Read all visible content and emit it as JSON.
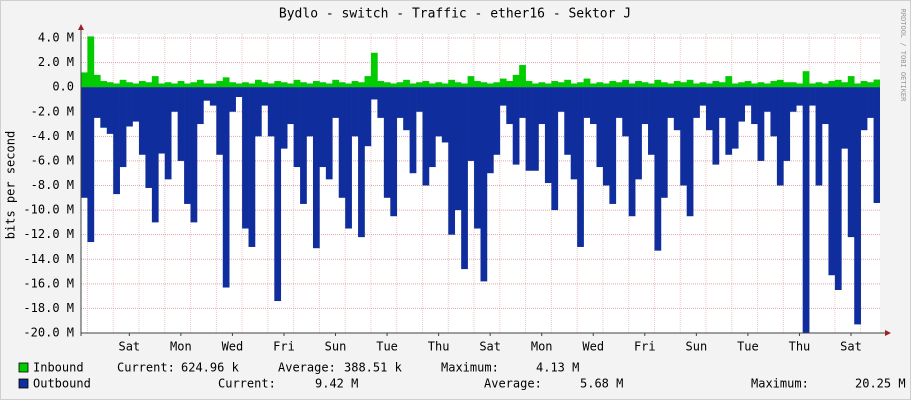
{
  "chart_data": {
    "type": "area",
    "title": "Bydlo - switch - Traffic - ether16 - Sektor J",
    "ylabel": "bits per second",
    "side_text": "RRDTOOL / TOBI OETIKER",
    "categories": [
      null,
      null,
      null,
      null,
      null,
      null,
      null,
      "Sat",
      null,
      null,
      null,
      null,
      null,
      null,
      null,
      "Mon",
      null,
      null,
      null,
      null,
      null,
      null,
      null,
      "Wed",
      null,
      null,
      null,
      null,
      null,
      null,
      null,
      "Fri",
      null,
      null,
      null,
      null,
      null,
      null,
      null,
      "Sun",
      null,
      null,
      null,
      null,
      null,
      null,
      null,
      "Tue",
      null,
      null,
      null,
      null,
      null,
      null,
      null,
      "Thu",
      null,
      null,
      null,
      null,
      null,
      null,
      null,
      "Sat",
      null,
      null,
      null,
      null,
      null,
      null,
      null,
      "Mon",
      null,
      null,
      null,
      null,
      null,
      null,
      null,
      "Wed",
      null,
      null,
      null,
      null,
      null,
      null,
      null,
      "Fri",
      null,
      null,
      null,
      null,
      null,
      null,
      null,
      "Sun",
      null,
      null,
      null,
      null,
      null,
      null,
      null,
      "Tue",
      null,
      null,
      null,
      null,
      null,
      null,
      null,
      "Thu",
      null,
      null,
      null,
      null,
      null,
      null,
      null,
      "Sat",
      null,
      null,
      null,
      null
    ],
    "ylim": [
      -20000000.0,
      4000000.0
    ],
    "yticks": [
      {
        "value": 4000000.0,
        "label": "4.0 M"
      },
      {
        "value": 2000000.0,
        "label": "2.0 M"
      },
      {
        "value": 0,
        "label": "0.0"
      },
      {
        "value": -2000000.0,
        "label": "-2.0 M"
      },
      {
        "value": -4000000.0,
        "label": "-4.0 M"
      },
      {
        "value": -6000000.0,
        "label": "-6.0 M"
      },
      {
        "value": -8000000.0,
        "label": "-8.0 M"
      },
      {
        "value": -10000000.0,
        "label": "-10.0 M"
      },
      {
        "value": -12000000.0,
        "label": "-12.0 M"
      },
      {
        "value": -14000000.0,
        "label": "-14.0 M"
      },
      {
        "value": -16000000.0,
        "label": "-16.0 M"
      },
      {
        "value": -18000000.0,
        "label": "-18.0 M"
      },
      {
        "value": -20000000.0,
        "label": "-20.0 M"
      }
    ],
    "grid": true,
    "series": [
      {
        "name": "Inbound",
        "color": "#00cc00",
        "stats": [
          [
            "Current:",
            "624.96 k"
          ],
          [
            "Average:",
            "388.51 k"
          ],
          [
            "Maximum:",
            "4.13 M"
          ]
        ],
        "values": [
          1200000.0,
          4130000.0,
          1000000.0,
          500000.0,
          400000.0,
          300000.0,
          600000.0,
          400000.0,
          300000.0,
          500000.0,
          400000.0,
          900000.0,
          300000.0,
          400000.0,
          300000.0,
          500000.0,
          300000.0,
          400000.0,
          600000.0,
          300000.0,
          300000.0,
          500000.0,
          800000.0,
          400000.0,
          300000.0,
          400000.0,
          300000.0,
          600000.0,
          400000.0,
          300000.0,
          500000.0,
          400000.0,
          300000.0,
          600000.0,
          400000.0,
          300000.0,
          500000.0,
          400000.0,
          300000.0,
          600000.0,
          400000.0,
          300000.0,
          500000.0,
          400000.0,
          900000.0,
          2800000.0,
          500000.0,
          400000.0,
          300000.0,
          400000.0,
          600000.0,
          300000.0,
          400000.0,
          500000.0,
          300000.0,
          400000.0,
          300000.0,
          600000.0,
          400000.0,
          300000.0,
          900000.0,
          500000.0,
          400000.0,
          300000.0,
          400000.0,
          700000.0,
          500000.0,
          1000000.0,
          1800000.0,
          500000.0,
          300000.0,
          400000.0,
          300000.0,
          500000.0,
          400000.0,
          600000.0,
          300000.0,
          400000.0,
          700000.0,
          300000.0,
          400000.0,
          300000.0,
          500000.0,
          400000.0,
          600000.0,
          300000.0,
          500000.0,
          400000.0,
          300000.0,
          600000.0,
          400000.0,
          300000.0,
          500000.0,
          400000.0,
          600000.0,
          300000.0,
          400000.0,
          300000.0,
          500000.0,
          400000.0,
          900000.0,
          300000.0,
          400000.0,
          500000.0,
          300000.0,
          400000.0,
          300000.0,
          500000.0,
          600000.0,
          400000.0,
          400000.0,
          300000.0,
          1300000.0,
          300000.0,
          400000.0,
          300000.0,
          500000.0,
          600000.0,
          400000.0,
          900000.0,
          300000.0,
          500000.0,
          400000.0,
          620000.0
        ]
      },
      {
        "name": "Outbound",
        "color": "#0f2d9c",
        "stats": [
          [
            "Current:",
            "9.42 M"
          ],
          [
            "Average:",
            "5.68 M"
          ],
          [
            "Maximum:",
            "20.25 M"
          ]
        ],
        "values": [
          -9000000.0,
          -12600000.0,
          -2500000.0,
          -3300000.0,
          -3800000.0,
          -8700000.0,
          -6500000.0,
          -3200000.0,
          -2800000.0,
          -5500000.0,
          -8200000.0,
          -11000000.0,
          -5400000.0,
          -7500000.0,
          -2000000.0,
          -6000000.0,
          -9500000.0,
          -11000000.0,
          -3000000.0,
          -1100000.0,
          -1500000.0,
          -5500000.0,
          -16300000.0,
          -2000000.0,
          -800000.0,
          -11500000.0,
          -13000000.0,
          -4000000.0,
          -1500000.0,
          -4000000.0,
          -17400000.0,
          -5000000.0,
          -3000000.0,
          -6500000.0,
          -9500000.0,
          -4000000.0,
          -13100000.0,
          -6500000.0,
          -7500000.0,
          -2500000.0,
          -9000000.0,
          -11500000.0,
          -4000000.0,
          -12200000.0,
          -4800000.0,
          -1000000.0,
          -2500000.0,
          -9000000.0,
          -10500000.0,
          -2500000.0,
          -3500000.0,
          -7000000.0,
          -2000000.0,
          -8000000.0,
          -6500000.0,
          -4000000.0,
          -4500000.0,
          -12000000.0,
          -10000000.0,
          -14800000.0,
          -6000000.0,
          -11500000.0,
          -15800000.0,
          -7000000.0,
          -5500000.0,
          -1500000.0,
          -3000000.0,
          -6300000.0,
          -2500000.0,
          -6800000.0,
          -6800000.0,
          -3000000.0,
          -7800000.0,
          -10000000.0,
          -2000000.0,
          -5500000.0,
          -7500000.0,
          -13000000.0,
          -2500000.0,
          -3000000.0,
          -6500000.0,
          -8000000.0,
          -9500000.0,
          -2500000.0,
          -4000000.0,
          -10500000.0,
          -7500000.0,
          -3000000.0,
          -5500000.0,
          -13300000.0,
          -9000000.0,
          -2500000.0,
          -3500000.0,
          -8000000.0,
          -10500000.0,
          -2500000.0,
          -1500000.0,
          -3500000.0,
          -6300000.0,
          -2500000.0,
          -5500000.0,
          -5000000.0,
          -2800000.0,
          -1500000.0,
          -3000000.0,
          -6000000.0,
          -2000000.0,
          -4000000.0,
          -8000000.0,
          -6000000.0,
          -2000000.0,
          -1500000.0,
          -20250000.0,
          -1500000.0,
          -8000000.0,
          -3000000.0,
          -15300000.0,
          -16500000.0,
          -5000000.0,
          -12200000.0,
          -19300000.0,
          -3500000.0,
          -2500000.0,
          -9420000.0
        ]
      }
    ]
  }
}
